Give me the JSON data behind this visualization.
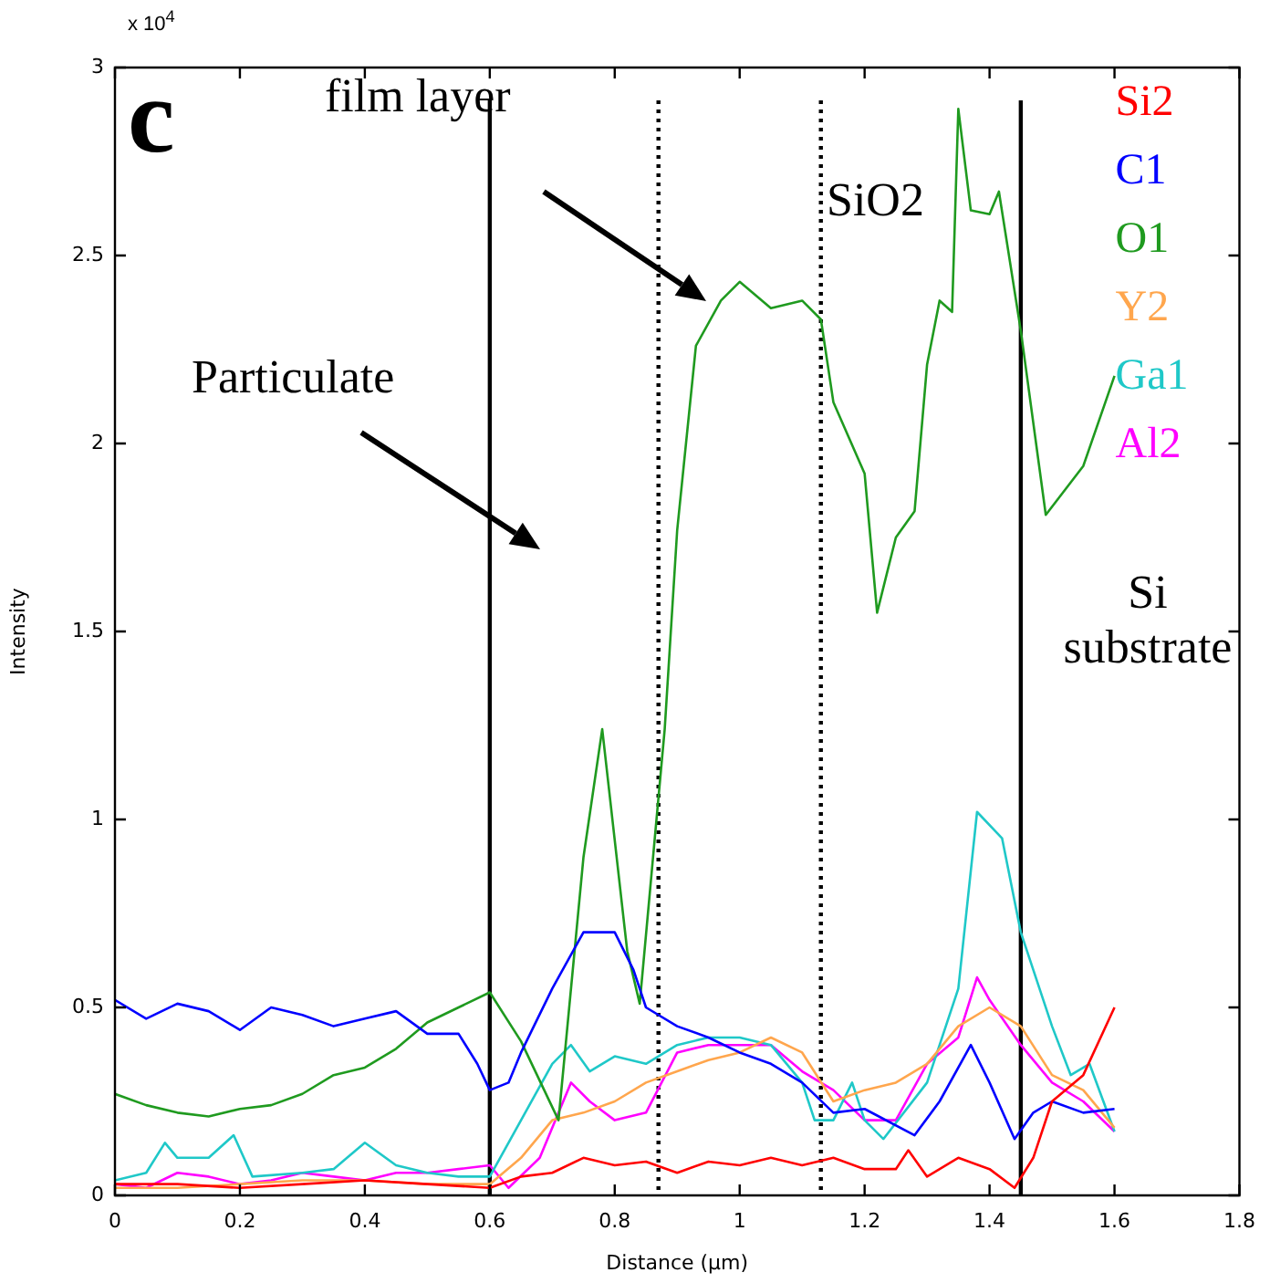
{
  "chart_data": {
    "type": "line",
    "xlabel": "Distance (µm)",
    "ylabel": "Intensity",
    "xlim": [
      0,
      1.8
    ],
    "xticks": [
      0,
      0.2,
      0.4,
      0.6,
      0.8,
      1,
      1.2,
      1.4,
      1.6,
      1.8
    ],
    "ylim": [
      0,
      3
    ],
    "yticks": [
      0,
      0.5,
      1,
      1.5,
      2,
      2.5,
      3
    ],
    "grid": false,
    "legend": "top right",
    "marker": "none",
    "line_style": "solid",
    "series": [
      {
        "name": "Si2",
        "color": "#ff0000",
        "x": [
          0,
          0.1,
          0.2,
          0.3,
          0.4,
          0.5,
          0.6,
          0.65,
          0.7,
          0.75,
          0.8,
          0.85,
          0.9,
          0.95,
          1.0,
          1.05,
          1.1,
          1.15,
          1.2,
          1.25,
          1.27,
          1.3,
          1.35,
          1.4,
          1.44,
          1.47,
          1.5,
          1.55,
          1.6
        ],
        "values": [
          0.03,
          0.03,
          0.02,
          0.03,
          0.04,
          0.03,
          0.02,
          0.05,
          0.06,
          0.1,
          0.08,
          0.09,
          0.06,
          0.09,
          0.08,
          0.1,
          0.08,
          0.1,
          0.07,
          0.07,
          0.12,
          0.05,
          0.1,
          0.07,
          0.02,
          0.1,
          0.25,
          0.32,
          0.5
        ]
      },
      {
        "name": "C1",
        "color": "#0000ff",
        "x": [
          0,
          0.05,
          0.1,
          0.15,
          0.2,
          0.25,
          0.3,
          0.35,
          0.4,
          0.45,
          0.5,
          0.55,
          0.58,
          0.6,
          0.63,
          0.65,
          0.7,
          0.75,
          0.8,
          0.83,
          0.85,
          0.9,
          0.95,
          1.0,
          1.05,
          1.1,
          1.15,
          1.2,
          1.28,
          1.32,
          1.37,
          1.4,
          1.44,
          1.47,
          1.5,
          1.55,
          1.6
        ],
        "values": [
          0.52,
          0.47,
          0.51,
          0.49,
          0.44,
          0.5,
          0.48,
          0.45,
          0.47,
          0.49,
          0.43,
          0.43,
          0.35,
          0.28,
          0.3,
          0.38,
          0.55,
          0.7,
          0.7,
          0.6,
          0.5,
          0.45,
          0.42,
          0.38,
          0.35,
          0.3,
          0.22,
          0.23,
          0.16,
          0.25,
          0.4,
          0.3,
          0.15,
          0.22,
          0.25,
          0.22,
          0.23
        ]
      },
      {
        "name": "O1",
        "color": "#1f9a1f",
        "x": [
          0,
          0.05,
          0.1,
          0.15,
          0.2,
          0.25,
          0.3,
          0.35,
          0.4,
          0.45,
          0.5,
          0.55,
          0.6,
          0.65,
          0.71,
          0.75,
          0.78,
          0.82,
          0.84,
          0.88,
          0.9,
          0.93,
          0.97,
          1.0,
          1.05,
          1.1,
          1.13,
          1.15,
          1.2,
          1.22,
          1.25,
          1.28,
          1.3,
          1.32,
          1.34,
          1.35,
          1.37,
          1.4,
          1.415,
          1.45,
          1.49,
          1.55,
          1.6
        ],
        "values": [
          0.27,
          0.24,
          0.22,
          0.21,
          0.23,
          0.24,
          0.27,
          0.32,
          0.34,
          0.39,
          0.46,
          0.5,
          0.54,
          0.41,
          0.2,
          0.9,
          1.24,
          0.65,
          0.51,
          1.24,
          1.77,
          2.26,
          2.38,
          2.43,
          2.36,
          2.38,
          2.33,
          2.11,
          1.92,
          1.55,
          1.75,
          1.82,
          2.21,
          2.38,
          2.35,
          2.89,
          2.62,
          2.61,
          2.67,
          2.3,
          1.81,
          1.94,
          2.18
        ]
      },
      {
        "name": "Y2",
        "color": "#ffa64d",
        "x": [
          0,
          0.1,
          0.2,
          0.3,
          0.4,
          0.5,
          0.6,
          0.65,
          0.7,
          0.75,
          0.8,
          0.85,
          0.9,
          0.95,
          1.0,
          1.05,
          1.1,
          1.15,
          1.2,
          1.25,
          1.3,
          1.35,
          1.4,
          1.45,
          1.5,
          1.55,
          1.6
        ],
        "values": [
          0.02,
          0.02,
          0.03,
          0.04,
          0.04,
          0.03,
          0.03,
          0.1,
          0.2,
          0.22,
          0.25,
          0.3,
          0.33,
          0.36,
          0.38,
          0.42,
          0.38,
          0.25,
          0.28,
          0.3,
          0.35,
          0.45,
          0.5,
          0.45,
          0.32,
          0.28,
          0.18
        ]
      },
      {
        "name": "Ga1",
        "color": "#1fc8c8",
        "x": [
          0,
          0.05,
          0.08,
          0.1,
          0.15,
          0.19,
          0.22,
          0.3,
          0.35,
          0.4,
          0.45,
          0.5,
          0.55,
          0.6,
          0.65,
          0.7,
          0.73,
          0.76,
          0.8,
          0.85,
          0.9,
          0.95,
          1.0,
          1.05,
          1.1,
          1.12,
          1.15,
          1.18,
          1.2,
          1.23,
          1.3,
          1.35,
          1.38,
          1.42,
          1.45,
          1.5,
          1.53,
          1.56,
          1.6
        ],
        "values": [
          0.04,
          0.06,
          0.14,
          0.1,
          0.1,
          0.16,
          0.05,
          0.06,
          0.07,
          0.14,
          0.08,
          0.06,
          0.05,
          0.05,
          0.2,
          0.35,
          0.4,
          0.33,
          0.37,
          0.35,
          0.4,
          0.42,
          0.42,
          0.4,
          0.3,
          0.2,
          0.2,
          0.3,
          0.2,
          0.15,
          0.3,
          0.55,
          1.02,
          0.95,
          0.7,
          0.45,
          0.32,
          0.35,
          0.17
        ]
      },
      {
        "name": "Al2",
        "color": "#ff00ff",
        "x": [
          0,
          0.05,
          0.1,
          0.15,
          0.2,
          0.25,
          0.3,
          0.35,
          0.4,
          0.45,
          0.5,
          0.55,
          0.6,
          0.63,
          0.68,
          0.73,
          0.76,
          0.8,
          0.85,
          0.9,
          0.95,
          1.0,
          1.05,
          1.1,
          1.15,
          1.2,
          1.25,
          1.3,
          1.35,
          1.38,
          1.4,
          1.45,
          1.5,
          1.55,
          1.6
        ],
        "values": [
          0.03,
          0.02,
          0.06,
          0.05,
          0.03,
          0.04,
          0.06,
          0.05,
          0.04,
          0.06,
          0.06,
          0.07,
          0.08,
          0.02,
          0.1,
          0.3,
          0.25,
          0.2,
          0.22,
          0.38,
          0.4,
          0.4,
          0.4,
          0.33,
          0.28,
          0.2,
          0.2,
          0.35,
          0.42,
          0.58,
          0.52,
          0.4,
          0.3,
          0.25,
          0.17
        ]
      }
    ],
    "ref_lines": [
      {
        "axis": "x",
        "value": 0.6,
        "color": "#000000",
        "line_style": "solid"
      },
      {
        "axis": "x",
        "value": 0.87,
        "color": "#000000",
        "line_style": "dotted"
      },
      {
        "axis": "x",
        "value": 1.13,
        "color": "#000000",
        "line_style": "dotted"
      },
      {
        "axis": "x",
        "value": 1.45,
        "color": "#000000",
        "line_style": "solid"
      }
    ],
    "annotations": [
      "x 10$^{4}$",
      "c",
      "film layer",
      "Particulate",
      "SiO2",
      "Si substrate"
    ]
  }
}
